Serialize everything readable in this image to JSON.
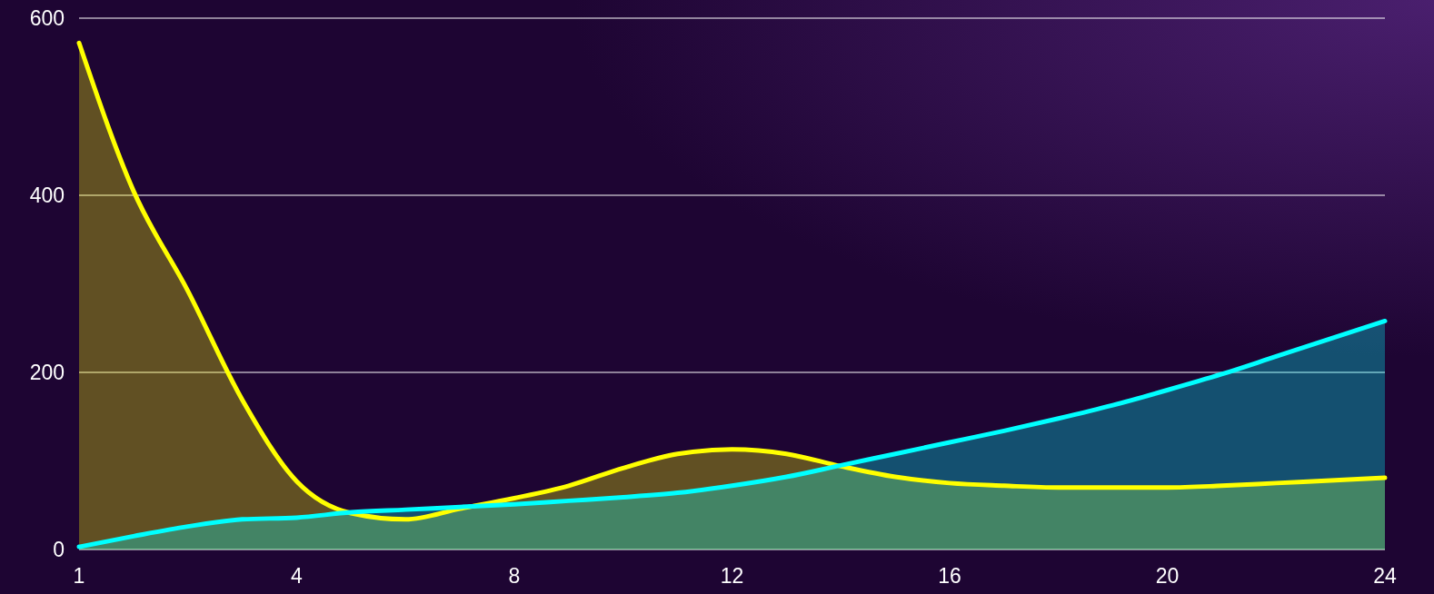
{
  "chart_data": {
    "type": "area",
    "categories": [
      "1",
      null,
      null,
      null,
      "4",
      null,
      null,
      null,
      "8",
      null,
      null,
      null,
      "12",
      null,
      null,
      null,
      "16",
      null,
      null,
      null,
      "20",
      null,
      null,
      null,
      "24"
    ],
    "ylim": [
      0,
      600
    ],
    "yticks": [
      0,
      200,
      400,
      600
    ],
    "grid": "y",
    "series": [
      {
        "color": "#ffff00",
        "values": [
          572,
          405,
          292,
          169,
          77,
          41,
          34,
          46,
          58,
          72,
          92,
          108,
          113,
          108,
          94,
          82,
          75,
          72,
          70,
          70,
          70,
          72,
          75,
          78,
          81
        ]
      },
      {
        "color": "#00ffff",
        "values": [
          3,
          15,
          26,
          34,
          36,
          42,
          45,
          48,
          51,
          55,
          59,
          64,
          72,
          82,
          95,
          108,
          121,
          134,
          148,
          163,
          180,
          198,
          218,
          238,
          258
        ]
      }
    ]
  }
}
